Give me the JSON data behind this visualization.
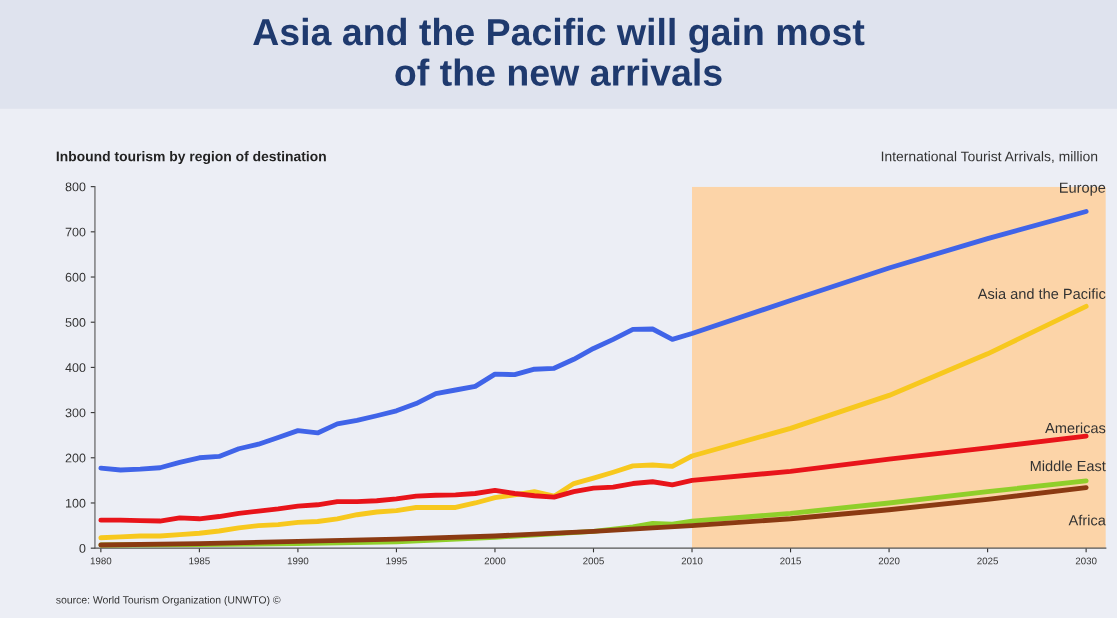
{
  "chart_data": {
    "type": "line",
    "title": "Asia and the Pacific will gain most\nof the new arrivals",
    "subtitle": "Inbound tourism by region of destination",
    "ylabel": "International Tourist Arrivals, million",
    "annotations": [
      "source: World Tourism Organization (UNWTO) ©"
    ],
    "series": [
      {
        "name": "Europe",
        "color": "#4064e8",
        "x": [
          1980,
          1981,
          1982,
          1983,
          1984,
          1985,
          1986,
          1987,
          1988,
          1989,
          1990,
          1991,
          1992,
          1993,
          1994,
          1995,
          1996,
          1997,
          1998,
          1999,
          2000,
          2001,
          2002,
          2003,
          2004,
          2005,
          2006,
          2007,
          2008,
          2009,
          2010,
          2015,
          2020,
          2025,
          2030
        ],
        "values": [
          177,
          173,
          175,
          178,
          190,
          200,
          203,
          220,
          230,
          245,
          260,
          255,
          275,
          283,
          293,
          304,
          320,
          342,
          350,
          358,
          385,
          384,
          396,
          398,
          418,
          442,
          462,
          484,
          485,
          462,
          475,
          548,
          620,
          685,
          745
        ]
      },
      {
        "name": "Asia and the Pacific",
        "color": "#f7c81e",
        "x": [
          1980,
          1981,
          1982,
          1983,
          1984,
          1985,
          1986,
          1987,
          1988,
          1989,
          1990,
          1991,
          1992,
          1993,
          1994,
          1995,
          1996,
          1997,
          1998,
          1999,
          2000,
          2001,
          2002,
          2003,
          2004,
          2005,
          2006,
          2007,
          2008,
          2009,
          2010,
          2015,
          2020,
          2025,
          2030
        ],
        "values": [
          23,
          25,
          27,
          27,
          30,
          33,
          38,
          45,
          50,
          52,
          57,
          59,
          65,
          74,
          80,
          83,
          90,
          90,
          90,
          100,
          112,
          118,
          125,
          115,
          143,
          155,
          168,
          182,
          184,
          181,
          204,
          265,
          338,
          430,
          535
        ]
      },
      {
        "name": "Americas",
        "color": "#e8141a",
        "x": [
          1980,
          1981,
          1982,
          1983,
          1984,
          1985,
          1986,
          1987,
          1988,
          1989,
          1990,
          1991,
          1992,
          1993,
          1994,
          1995,
          1996,
          1997,
          1998,
          1999,
          2000,
          2001,
          2002,
          2003,
          2004,
          2005,
          2006,
          2007,
          2008,
          2009,
          2010,
          2015,
          2020,
          2025,
          2030
        ],
        "values": [
          62,
          62,
          61,
          60,
          67,
          65,
          70,
          77,
          82,
          87,
          93,
          96,
          103,
          103,
          105,
          109,
          115,
          117,
          118,
          121,
          128,
          121,
          116,
          113,
          125,
          133,
          135,
          143,
          147,
          140,
          150,
          170,
          197,
          222,
          248
        ]
      },
      {
        "name": "Middle East",
        "color": "#8fcf2a",
        "x": [
          1980,
          1985,
          1990,
          1995,
          2000,
          2005,
          2007,
          2008,
          2009,
          2010,
          2015,
          2020,
          2025,
          2030
        ],
        "values": [
          7,
          8,
          10,
          14,
          24,
          37,
          47,
          55,
          53,
          60,
          77,
          100,
          125,
          149
        ]
      },
      {
        "name": "Africa",
        "color": "#8b3a12",
        "x": [
          1980,
          1985,
          1990,
          1995,
          2000,
          2005,
          2008,
          2010,
          2015,
          2020,
          2025,
          2030
        ],
        "values": [
          7,
          10,
          15,
          20,
          27,
          37,
          45,
          50,
          65,
          85,
          108,
          134
        ]
      }
    ],
    "xlim": [
      1979.7,
      2031
    ],
    "xticks": [
      1980,
      1985,
      1990,
      1995,
      2000,
      2005,
      2010,
      2015,
      2020,
      2025,
      2030
    ],
    "ylim": [
      0,
      800
    ],
    "yticks": [
      0,
      100,
      200,
      300,
      400,
      500,
      600,
      700,
      800
    ],
    "bands": [
      {
        "axis": "x",
        "from": 2010,
        "to": 2031,
        "color": "#fcd4a8"
      }
    ],
    "grid": false,
    "legend": false,
    "line_style": "solid",
    "marker": "none"
  }
}
